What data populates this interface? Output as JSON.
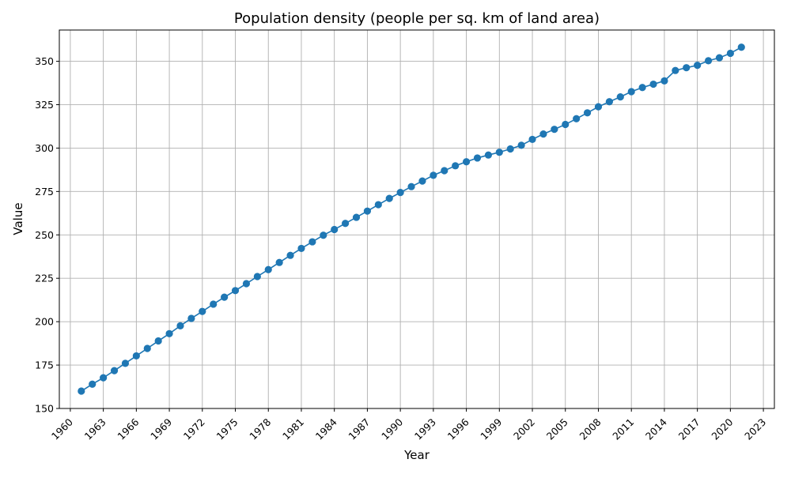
{
  "chart_data": {
    "type": "line",
    "title": "Population density (people per sq. km of land area)",
    "xlabel": "Year",
    "ylabel": "Value",
    "xlim": [
      1959,
      2024
    ],
    "ylim": [
      150,
      368
    ],
    "x_ticks": [
      1960,
      1963,
      1966,
      1969,
      1972,
      1975,
      1978,
      1981,
      1984,
      1987,
      1990,
      1993,
      1996,
      1999,
      2002,
      2005,
      2008,
      2011,
      2014,
      2017,
      2020,
      2023
    ],
    "y_ticks": [
      150,
      175,
      200,
      225,
      250,
      275,
      300,
      325,
      350
    ],
    "grid": true,
    "legend": "none",
    "series_color": "#1f77b4",
    "x": [
      1961,
      1962,
      1963,
      1964,
      1965,
      1966,
      1967,
      1968,
      1969,
      1970,
      1971,
      1972,
      1973,
      1974,
      1975,
      1976,
      1977,
      1978,
      1979,
      1980,
      1981,
      1982,
      1983,
      1984,
      1985,
      1986,
      1987,
      1988,
      1989,
      1990,
      1991,
      1992,
      1993,
      1994,
      1995,
      1996,
      1997,
      1998,
      1999,
      2000,
      2001,
      2002,
      2003,
      2004,
      2005,
      2006,
      2007,
      2008,
      2009,
      2010,
      2011,
      2012,
      2013,
      2014,
      2015,
      2016,
      2017,
      2018,
      2019,
      2020,
      2021
    ],
    "values": [
      160.0,
      164.0,
      167.7,
      171.8,
      176.0,
      180.3,
      184.6,
      188.9,
      193.1,
      197.6,
      201.9,
      205.9,
      210.1,
      214.1,
      217.9,
      221.9,
      226.0,
      230.0,
      234.1,
      238.2,
      242.2,
      246.0,
      249.8,
      253.1,
      256.6,
      260.1,
      263.7,
      267.4,
      271.0,
      274.4,
      277.8,
      281.0,
      284.3,
      287.0,
      289.8,
      292.1,
      294.3,
      296.0,
      297.6,
      299.5,
      301.6,
      305.0,
      308.1,
      310.8,
      313.6,
      316.9,
      320.3,
      323.8,
      326.7,
      329.5,
      332.5,
      334.9,
      336.8,
      338.7,
      344.7,
      346.3,
      347.7,
      350.3,
      352.0,
      354.6,
      358.1
    ]
  }
}
